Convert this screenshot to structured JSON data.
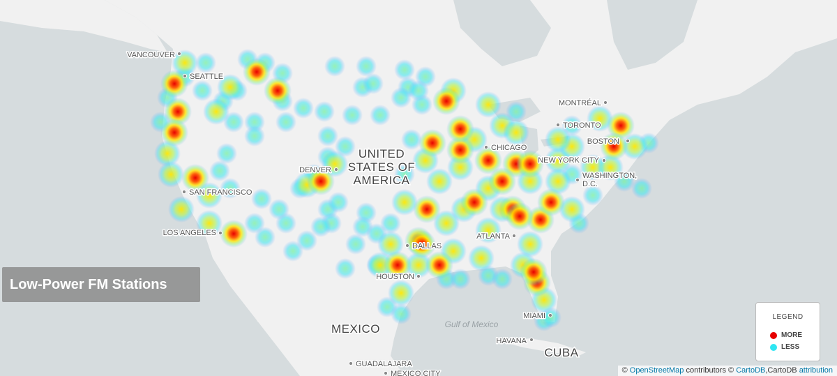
{
  "title": "Low-Power FM Stations",
  "legend": {
    "title": "LEGEND",
    "items": [
      {
        "label": "MORE",
        "color": "#e60000"
      },
      {
        "label": "LESS",
        "color": "#2ee6f2"
      }
    ]
  },
  "cities": [
    {
      "lines": [
        "VANCOUVER"
      ]
    },
    {
      "lines": [
        "SEATTLE"
      ]
    },
    {
      "lines": [
        "SAN FRANCISCO"
      ]
    },
    {
      "lines": [
        "LOS ANGELES"
      ]
    },
    {
      "lines": [
        "DENVER"
      ]
    },
    {
      "lines": [
        "DALLAS"
      ]
    },
    {
      "lines": [
        "HOUSTON"
      ]
    },
    {
      "lines": [
        "ATLANTA"
      ]
    },
    {
      "lines": [
        "CHICAGO"
      ]
    },
    {
      "lines": [
        "NEW YORK CITY"
      ]
    },
    {
      "lines": [
        "WASHINGTON,",
        "D.C."
      ]
    },
    {
      "lines": [
        "BOSTON"
      ]
    },
    {
      "lines": [
        "TORONTO"
      ]
    },
    {
      "lines": [
        "MONTRÉAL"
      ]
    },
    {
      "lines": [
        "MIAMI"
      ]
    },
    {
      "lines": [
        "HAVANA"
      ]
    },
    {
      "lines": [
        "GUADALAJARA"
      ]
    },
    {
      "lines": [
        "MEXICO CITY"
      ]
    }
  ],
  "countries": [
    {
      "lines": [
        "UNITED",
        "STATES OF",
        "AMERICA"
      ]
    },
    {
      "lines": [
        "MEXICO"
      ]
    },
    {
      "lines": [
        "CUBA"
      ]
    }
  ],
  "water": [
    {
      "lines": [
        "Gulf of Mexico"
      ]
    }
  ],
  "attribution": [
    "©",
    "OpenStreetMap",
    "contributors ©",
    "CartoDB",
    ",CartoDB",
    "attribution"
  ]
}
